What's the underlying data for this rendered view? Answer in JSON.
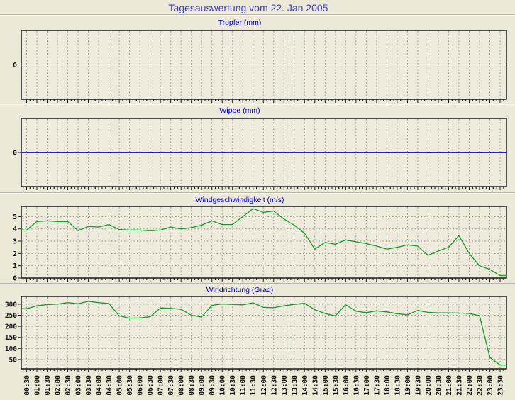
{
  "title": "Tagesauswertung vom 22. Jan 2005",
  "colors": {
    "background": "#ece9d8",
    "plot_background": "#eeebdc",
    "grid": "#8f8f88",
    "border": "#1a1a1a",
    "title_text": "#4040cc",
    "panel_title_text": "#0000cc",
    "tick_text": "#111111",
    "zero_line": "#2222bb",
    "wind_line": "#129b2a"
  },
  "chart_data": {
    "type": "line",
    "layout": "4 stacked panels, shared x axis, vertical dashed grid every 30 min, rotated x tick labels under bottom panel only",
    "categories": [
      "00:30",
      "01:00",
      "01:30",
      "02:00",
      "02:30",
      "03:00",
      "03:30",
      "04:00",
      "04:30",
      "05:00",
      "05:30",
      "06:00",
      "06:30",
      "07:00",
      "07:30",
      "08:00",
      "08:30",
      "09:00",
      "09:30",
      "10:00",
      "10:30",
      "11:00",
      "11:30",
      "12:00",
      "12:30",
      "13:00",
      "13:30",
      "14:00",
      "14:30",
      "15:00",
      "15:30",
      "16:00",
      "16:30",
      "17:00",
      "17:30",
      "18:00",
      "18:30",
      "19:00",
      "19:30",
      "20:00",
      "20:30",
      "21:00",
      "21:30",
      "22:00",
      "22:30",
      "23:00",
      "23:30"
    ],
    "panels": [
      {
        "title": "Tropfer (mm)",
        "color": "#2222bb",
        "line_width": 1.1,
        "ylim": [
          -1,
          1
        ],
        "yticks": [
          0
        ],
        "hgrid": [],
        "values": [
          0,
          0,
          0,
          0,
          0,
          0,
          0,
          0,
          0,
          0,
          0,
          0,
          0,
          0,
          0,
          0,
          0,
          0,
          0,
          0,
          0,
          0,
          0,
          0,
          0,
          0,
          0,
          0,
          0,
          0,
          0,
          0,
          0,
          0,
          0,
          0,
          0,
          0,
          0,
          0,
          0,
          0,
          0,
          0,
          0,
          0,
          0
        ]
      },
      {
        "title": "Wippe (mm)",
        "color": "#2222bb",
        "line_width": 2,
        "ylim": [
          -1,
          1
        ],
        "yticks": [
          0
        ],
        "hgrid": [],
        "values": [
          0,
          0,
          0,
          0,
          0,
          0,
          0,
          0,
          0,
          0,
          0,
          0,
          0,
          0,
          0,
          0,
          0,
          0,
          0,
          0,
          0,
          0,
          0,
          0,
          0,
          0,
          0,
          0,
          0,
          0,
          0,
          0,
          0,
          0,
          0,
          0,
          0,
          0,
          0,
          0,
          0,
          0,
          0,
          0,
          0,
          0,
          0
        ]
      },
      {
        "title": "Windgeschwindigkeit (m/s)",
        "color": "#129b2a",
        "line_width": 1.3,
        "ylim": [
          0,
          5.83
        ],
        "yticks": [
          0,
          1,
          2,
          3,
          4,
          5
        ],
        "hgrid": [
          1,
          2,
          3,
          4,
          5
        ],
        "values": [
          3.9,
          4.6,
          4.65,
          4.6,
          4.6,
          3.85,
          4.2,
          4.15,
          4.35,
          3.95,
          3.9,
          3.9,
          3.85,
          3.9,
          4.15,
          4.0,
          4.1,
          4.3,
          4.65,
          4.35,
          4.35,
          5.0,
          5.65,
          5.35,
          5.45,
          4.8,
          4.3,
          3.65,
          2.35,
          2.9,
          2.75,
          3.1,
          2.95,
          2.8,
          2.6,
          2.35,
          2.5,
          2.7,
          2.6,
          1.85,
          2.2,
          2.5,
          3.45,
          2.0,
          1.0,
          0.7,
          0.2
        ]
      },
      {
        "title": "Windrichtung (Grad)",
        "color": "#129b2a",
        "line_width": 1.3,
        "ylim": [
          8,
          335
        ],
        "yticks": [
          50,
          100,
          150,
          200,
          250,
          300
        ],
        "hgrid": [
          50,
          100,
          150,
          200,
          250,
          300
        ],
        "values": [
          280,
          293,
          298,
          300,
          307,
          302,
          313,
          307,
          303,
          247,
          237,
          238,
          243,
          283,
          281,
          277,
          250,
          242,
          295,
          301,
          299,
          297,
          306,
          286,
          284,
          293,
          299,
          304,
          275,
          258,
          247,
          298,
          268,
          262,
          270,
          265,
          257,
          252,
          272,
          263,
          261,
          261,
          260,
          258,
          248,
          60,
          25
        ]
      }
    ]
  }
}
